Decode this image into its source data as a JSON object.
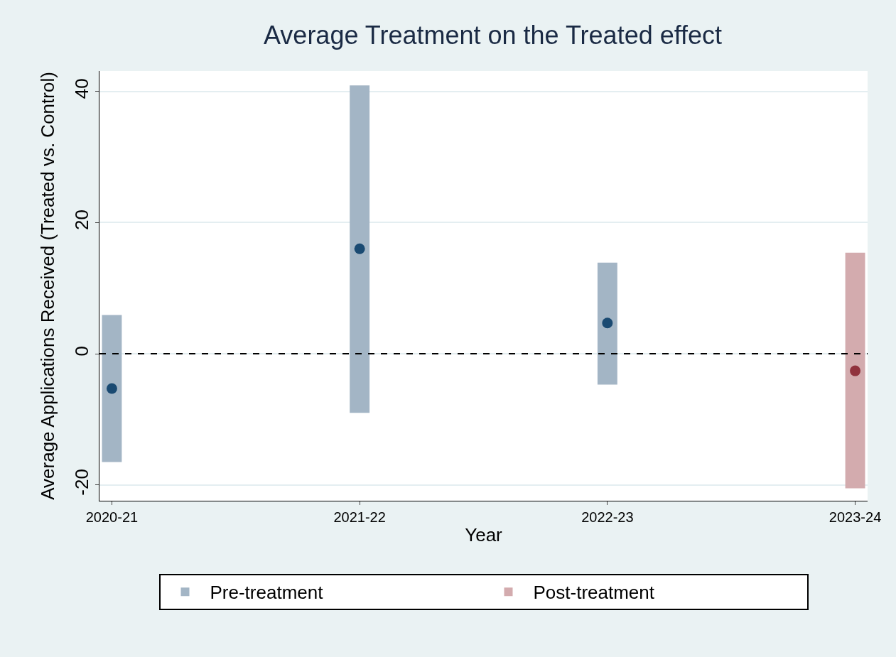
{
  "chart_data": {
    "type": "bar",
    "title": "Average Treatment on the Treated effect",
    "xlabel": "Year",
    "ylabel": "Average Applications Received (Treated vs. Control)",
    "categories": [
      "2020-21",
      "2021-22",
      "2022-23",
      "2023-24"
    ],
    "series": [
      {
        "name": "Pre-treatment",
        "color": "#a3b5c5",
        "values": [
          22.4,
          49.9,
          18.6,
          null
        ],
        "base": [
          -16.5,
          -9.0,
          -4.7,
          null
        ]
      },
      {
        "name": "Post-treatment",
        "color": "#d3abae",
        "values": [
          null,
          null,
          null,
          35.9
        ],
        "base": [
          null,
          null,
          null,
          -20.5
        ]
      },
      {
        "type": "scatter",
        "color": "#1a4a72",
        "values": [
          -5.3,
          16.0,
          4.7,
          null
        ]
      },
      {
        "type": "scatter",
        "color": "#90323d",
        "values": [
          null,
          null,
          null,
          -2.6
        ]
      }
    ],
    "ylim": [
      -22.4,
      43.1
    ],
    "yticks": [
      -20,
      0,
      20,
      40
    ],
    "ref_lines": [
      {
        "axis": "y",
        "value": 0,
        "color": "#000000",
        "line_style": "dashed"
      }
    ],
    "grid": "y",
    "legend": "bottom",
    "marker": "circle"
  }
}
